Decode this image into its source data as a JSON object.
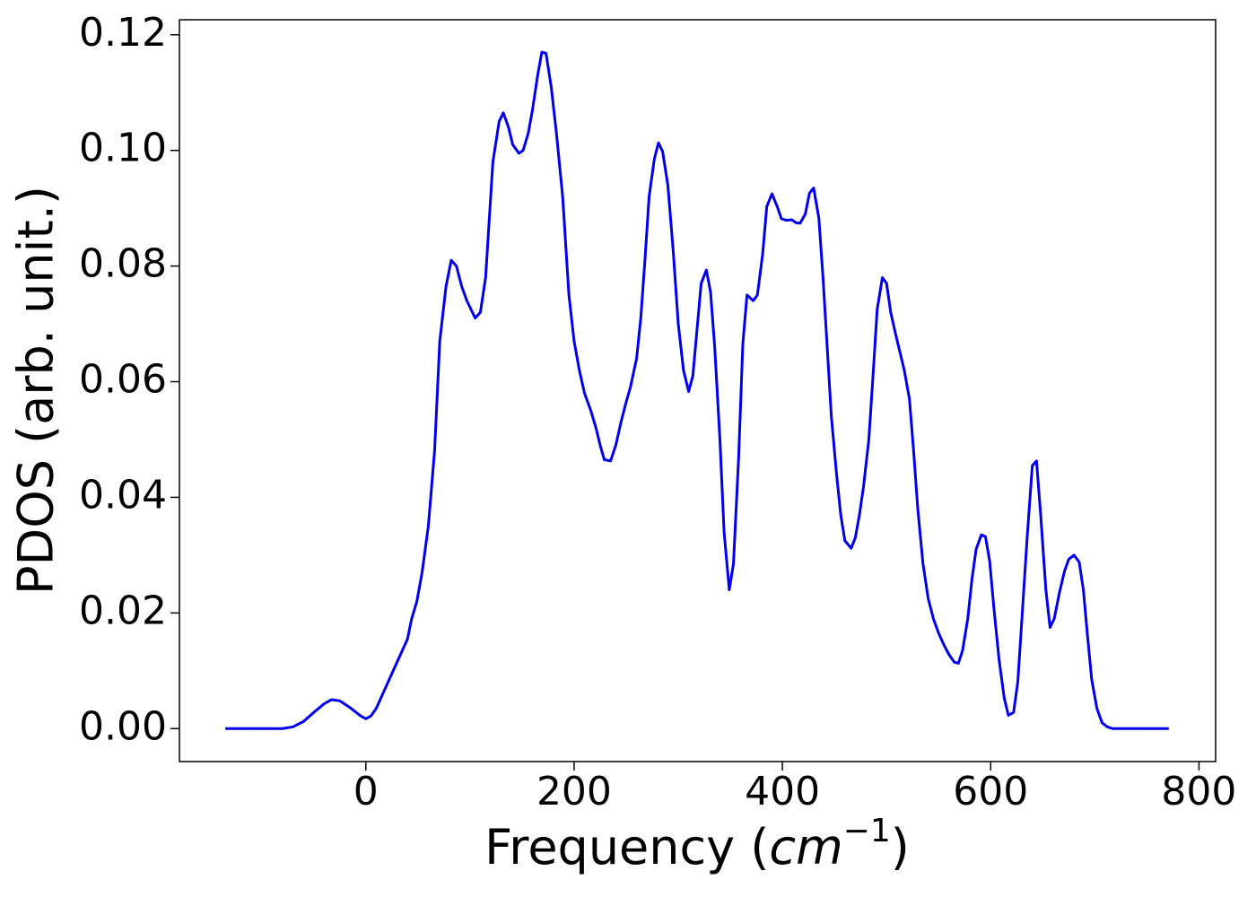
{
  "chart_data": {
    "type": "line",
    "xlabel": [
      "Frequency (",
      "cm",
      "−1",
      ")"
    ],
    "ylabel": "PDOS (arb. unit.)",
    "xlim": [
      -179,
      816
    ],
    "ylim": [
      -0.0057,
      0.1226
    ],
    "xticks": [
      0,
      200,
      400,
      600,
      800
    ],
    "yticks": [
      {
        "value": 0,
        "label": "0.00"
      },
      {
        "value": 0.02,
        "label": "0.02"
      },
      {
        "value": 0.04,
        "label": "0.04"
      },
      {
        "value": 0.06,
        "label": "0.06"
      },
      {
        "value": 0.08,
        "label": "0.08"
      },
      {
        "value": 0.1,
        "label": "0.10"
      },
      {
        "value": 0.12,
        "label": "0.12"
      }
    ],
    "series": [
      {
        "name": "PDOS",
        "color": "#0000ee",
        "x": [
          -135,
          -80,
          -70,
          -60,
          -50,
          -40,
          -33,
          -25,
          -15,
          -5,
          0,
          5,
          10,
          15,
          20,
          25,
          30,
          35,
          40,
          44,
          49,
          54,
          60,
          66,
          71,
          77,
          82,
          87,
          92,
          97,
          105,
          110,
          115,
          122,
          128,
          132,
          137,
          141,
          147,
          151,
          156,
          160,
          165,
          169,
          173,
          178,
          183,
          189,
          195,
          200,
          205,
          210,
          216,
          221,
          225,
          229,
          235,
          240,
          245,
          250,
          254,
          260,
          264,
          268,
          272,
          277,
          281,
          285,
          290,
          295,
          300,
          305,
          310,
          314,
          318,
          322,
          327,
          331,
          335,
          340,
          344,
          349,
          353,
          358,
          362,
          366,
          372,
          376,
          381,
          385,
          390,
          395,
          399,
          404,
          409,
          413,
          417,
          422,
          426,
          430,
          435,
          439,
          443,
          447,
          452,
          456,
          460,
          466,
          470,
          474,
          478,
          483,
          487,
          491,
          496,
          500,
          504,
          509,
          513,
          517,
          522,
          526,
          530,
          535,
          540,
          545,
          550,
          555,
          560,
          565,
          569,
          573,
          578,
          582,
          586,
          591,
          595,
          599,
          603,
          608,
          613,
          617,
          622,
          626,
          630,
          635,
          640,
          644,
          648,
          653,
          657,
          661,
          666,
          671,
          675,
          680,
          685,
          689,
          693,
          697,
          702,
          707,
          712,
          717,
          771
        ],
        "values": [
          0,
          0,
          0.0003,
          0.0012,
          0.0028,
          0.0043,
          0.005,
          0.0048,
          0.0036,
          0.0022,
          0.0017,
          0.0022,
          0.0035,
          0.0055,
          0.0075,
          0.0095,
          0.0115,
          0.0135,
          0.0155,
          0.019,
          0.022,
          0.027,
          0.035,
          0.048,
          0.067,
          0.0765,
          0.081,
          0.08,
          0.0765,
          0.074,
          0.071,
          0.072,
          0.078,
          0.098,
          0.105,
          0.1065,
          0.104,
          0.101,
          0.0995,
          0.1,
          0.103,
          0.107,
          0.113,
          0.117,
          0.1168,
          0.111,
          0.103,
          0.092,
          0.075,
          0.067,
          0.062,
          0.058,
          0.055,
          0.052,
          0.049,
          0.0465,
          0.0463,
          0.049,
          0.053,
          0.0565,
          0.059,
          0.064,
          0.071,
          0.081,
          0.092,
          0.0985,
          0.1013,
          0.0998,
          0.094,
          0.083,
          0.07,
          0.062,
          0.0583,
          0.061,
          0.069,
          0.077,
          0.0793,
          0.0755,
          0.066,
          0.05,
          0.034,
          0.024,
          0.0285,
          0.047,
          0.0665,
          0.075,
          0.074,
          0.075,
          0.082,
          0.0903,
          0.0925,
          0.0903,
          0.0882,
          0.0879,
          0.088,
          0.0875,
          0.0874,
          0.089,
          0.0926,
          0.0935,
          0.0883,
          0.078,
          0.066,
          0.054,
          0.044,
          0.037,
          0.0325,
          0.0312,
          0.033,
          0.037,
          0.042,
          0.05,
          0.061,
          0.0725,
          0.078,
          0.077,
          0.072,
          0.068,
          0.065,
          0.062,
          0.057,
          0.048,
          0.038,
          0.0285,
          0.0225,
          0.019,
          0.0165,
          0.0145,
          0.0128,
          0.0115,
          0.0113,
          0.0135,
          0.019,
          0.0258,
          0.031,
          0.0335,
          0.0332,
          0.029,
          0.021,
          0.012,
          0.0053,
          0.0023,
          0.0028,
          0.008,
          0.019,
          0.033,
          0.0455,
          0.0463,
          0.037,
          0.024,
          0.0175,
          0.019,
          0.0235,
          0.0273,
          0.0293,
          0.03,
          0.0288,
          0.024,
          0.016,
          0.0085,
          0.0035,
          0.001,
          0.0003,
          0,
          0
        ]
      }
    ]
  }
}
